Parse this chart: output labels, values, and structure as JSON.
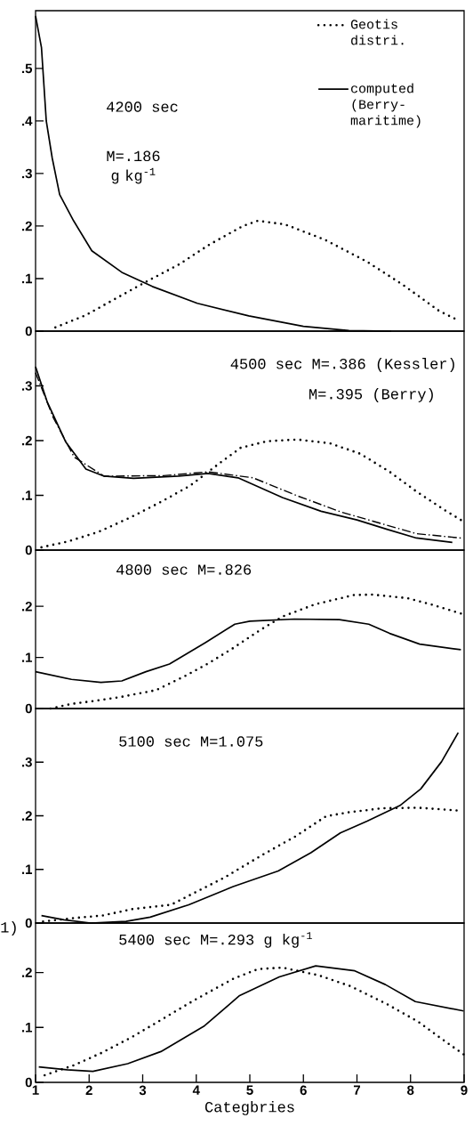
{
  "chart_data": [
    {
      "type": "line",
      "xlim": [
        1,
        9
      ],
      "ylim": [
        0,
        0.61
      ],
      "tick_labels": "y",
      "legend": "top right",
      "yticks": [
        0,
        {
          "value": 0.1,
          "label": ".1"
        },
        {
          "value": 0.2,
          "label": ".2"
        },
        {
          "value": 0.3,
          "label": ".3"
        },
        {
          "value": 0.4,
          "label": ".4"
        },
        {
          "value": 0.5,
          "label": ".5"
        }
      ],
      "annotations": [
        "4200 sec",
        "M=.186 g kg$^{-1}$"
      ],
      "series": [
        {
          "name": "Geotis distri.",
          "color": "#000000",
          "line_style": "dotted",
          "x": [
            1.37,
            1.93,
            2.55,
            3.12,
            3.68,
            4.25,
            4.87,
            5.15,
            5.66,
            6.4,
            7.19,
            7.86,
            8.54,
            8.82
          ],
          "values": [
            0.007,
            0.03,
            0.065,
            0.097,
            0.127,
            0.165,
            0.2,
            0.21,
            0.203,
            0.174,
            0.132,
            0.088,
            0.038,
            0.024
          ]
        },
        {
          "name": "computed (Berry-maritime)",
          "color": "#000000",
          "line_style": "solid",
          "x": [
            1,
            1.11,
            1.2,
            1.31,
            1.45,
            1.71,
            2.05,
            2.61,
            3.18,
            4.02,
            4.98,
            6.0,
            6.85,
            7.64
          ],
          "values": [
            0.6,
            0.54,
            0.4,
            0.33,
            0.26,
            0.21,
            0.153,
            0.112,
            0.085,
            0.053,
            0.029,
            0.009,
            0.001,
            0
          ]
        }
      ]
    },
    {
      "type": "line",
      "xlim": [
        1,
        9
      ],
      "ylim": [
        0,
        0.4
      ],
      "tick_labels": "y",
      "yticks": [
        0,
        {
          "value": 0.1,
          "label": ".1"
        },
        {
          "value": 0.2,
          "label": ".2"
        },
        {
          "value": 0.3,
          "label": ".3"
        }
      ],
      "annotations": [
        "4500 sec M=.386 (Kessler)",
        "M=.395 (Berry)"
      ],
      "series": [
        {
          "color": "#000000",
          "line_style": "dotted",
          "x": [
            1.11,
            1.61,
            2.17,
            2.78,
            3.36,
            3.89,
            4.44,
            4.83,
            5.33,
            5.89,
            6.5,
            7.06,
            7.61,
            8.11,
            8.67,
            8.94
          ],
          "values": [
            0.005,
            0.016,
            0.033,
            0.06,
            0.089,
            0.118,
            0.159,
            0.187,
            0.199,
            0.202,
            0.195,
            0.176,
            0.143,
            0.107,
            0.071,
            0.055
          ]
        },
        {
          "color": "#000000",
          "line_style": "dashed",
          "x": [
            1,
            1.33,
            1.72,
            2.28,
            3.39,
            4.22,
            5.06,
            5.89,
            6.72,
            8.11,
            8.94
          ],
          "values": [
            0.324,
            0.242,
            0.17,
            0.135,
            0.136,
            0.143,
            0.132,
            0.099,
            0.069,
            0.03,
            0.022
          ]
        },
        {
          "color": "#000000",
          "line_style": "solid",
          "x": [
            1,
            1.22,
            1.56,
            1.94,
            2.28,
            2.83,
            3.67,
            4.22,
            4.78,
            5.61,
            6.33,
            7.0,
            7.56,
            8.11,
            8.78
          ],
          "values": [
            0.335,
            0.27,
            0.198,
            0.148,
            0.135,
            0.131,
            0.135,
            0.14,
            0.132,
            0.096,
            0.071,
            0.055,
            0.038,
            0.022,
            0.014
          ]
        }
      ]
    },
    {
      "type": "line",
      "xlim": [
        1,
        9
      ],
      "ylim": [
        0,
        0.31
      ],
      "tick_labels": "y",
      "yticks": [
        0,
        {
          "value": 0.1,
          "label": ".1"
        },
        {
          "value": 0.2,
          "label": ".2"
        }
      ],
      "annotations": [
        "4800 sec M=.826"
      ],
      "series": [
        {
          "color": "#000000",
          "line_style": "dotted",
          "x": [
            1.28,
            1.67,
            2.11,
            2.61,
            3.25,
            3.78,
            4.22,
            4.67,
            5.17,
            5.61,
            6.22,
            6.94,
            7.28,
            7.94,
            8.44,
            8.94
          ],
          "values": [
            0,
            0.009,
            0.015,
            0.023,
            0.036,
            0.063,
            0.088,
            0.117,
            0.152,
            0.18,
            0.204,
            0.222,
            0.223,
            0.216,
            0.202,
            0.186
          ]
        },
        {
          "color": "#000000",
          "line_style": "solid",
          "x": [
            1,
            1.67,
            2.22,
            2.61,
            3.06,
            3.5,
            4.17,
            4.72,
            5.0,
            5.83,
            6.67,
            7.22,
            7.61,
            8.17,
            8.94
          ],
          "values": [
            0.072,
            0.057,
            0.051,
            0.054,
            0.072,
            0.087,
            0.129,
            0.165,
            0.171,
            0.175,
            0.174,
            0.165,
            0.147,
            0.126,
            0.115
          ]
        }
      ]
    },
    {
      "type": "line",
      "xlim": [
        1,
        9
      ],
      "ylim": [
        0,
        0.4
      ],
      "tick_labels": "y",
      "yticks": [
        0,
        {
          "value": 0.1,
          "label": ".1"
        },
        {
          "value": 0.2,
          "label": ".2"
        },
        {
          "value": 0.3,
          "label": ".3"
        }
      ],
      "annotations": [
        "5100 sec M=1.075"
      ],
      "series": [
        {
          "color": "#000000",
          "line_style": "dotted",
          "x": [
            1.14,
            1.69,
            2.25,
            2.81,
            3.53,
            3.86,
            4.53,
            5.25,
            5.86,
            6.42,
            6.81,
            7.47,
            8.14,
            8.86
          ],
          "values": [
            0.003,
            0.009,
            0.014,
            0.026,
            0.034,
            0.051,
            0.085,
            0.128,
            0.162,
            0.199,
            0.206,
            0.214,
            0.215,
            0.21
          ]
        },
        {
          "color": "#000000",
          "line_style": "solid",
          "x": [
            1.11,
            1.53,
            2.03,
            2.69,
            3.14,
            3.86,
            4.69,
            5.53,
            6.14,
            6.69,
            7.19,
            7.8,
            8.19,
            8.58,
            8.89
          ],
          "values": [
            0.014,
            0.006,
            0.0,
            0.003,
            0.011,
            0.034,
            0.068,
            0.097,
            0.131,
            0.168,
            0.19,
            0.219,
            0.25,
            0.301,
            0.355
          ]
        }
      ]
    },
    {
      "type": "line",
      "xlim": [
        1,
        9
      ],
      "ylim": [
        0,
        0.29
      ],
      "xlabel": "Categbries",
      "xticks": [
        1,
        2,
        3,
        4,
        5,
        6,
        7,
        8,
        9
      ],
      "yticks": [
        0,
        {
          "value": 0.1,
          "label": ".1"
        },
        {
          "value": 0.2,
          "label": ".2"
        }
      ],
      "annotations": [
        "5400 sec M=.293 g kg$^{-1}$",
        "1)"
      ],
      "series": [
        {
          "color": "#000000",
          "line_style": "dotted",
          "x": [
            1.17,
            1.71,
            2.24,
            2.81,
            3.4,
            3.97,
            4.7,
            5.15,
            5.6,
            6.28,
            6.88,
            7.53,
            8.15,
            8.54,
            8.99
          ],
          "values": [
            0.013,
            0.031,
            0.054,
            0.083,
            0.117,
            0.15,
            0.189,
            0.206,
            0.209,
            0.195,
            0.175,
            0.144,
            0.11,
            0.082,
            0.051
          ]
        },
        {
          "color": "#000000",
          "line_style": "solid",
          "x": [
            1.06,
            1.59,
            2.07,
            2.72,
            3.34,
            4.14,
            4.81,
            5.55,
            6.23,
            6.96,
            7.53,
            8.09,
            8.99
          ],
          "values": [
            0.028,
            0.023,
            0.02,
            0.034,
            0.056,
            0.102,
            0.158,
            0.192,
            0.212,
            0.203,
            0.178,
            0.147,
            0.13
          ]
        }
      ]
    }
  ]
}
